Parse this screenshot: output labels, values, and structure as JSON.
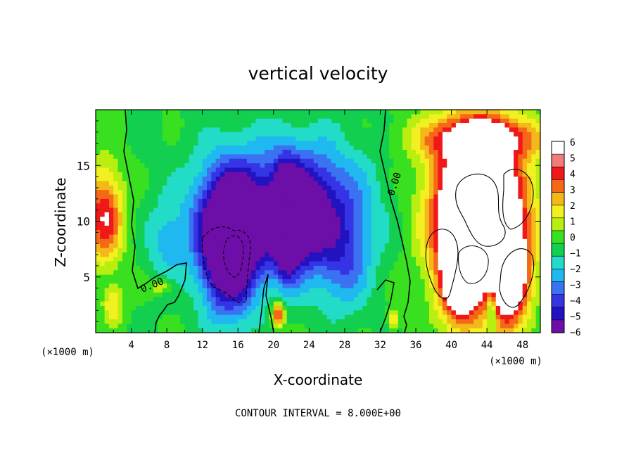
{
  "chart_data": {
    "type": "heatmap",
    "title": "vertical velocity",
    "xlabel": "X-coordinate",
    "ylabel": "Z-coordinate",
    "x_unit_label": "(×1000 m)",
    "x_unit_label_right": "(×1000 m)",
    "xlim": [
      0,
      50
    ],
    "ylim": [
      0,
      20
    ],
    "x_ticks": [
      4,
      8,
      12,
      16,
      20,
      24,
      28,
      32,
      36,
      40,
      44,
      48
    ],
    "y_ticks": [
      5,
      10,
      15
    ],
    "colorbar": {
      "min": -6,
      "max": 6,
      "tick_values": [
        6,
        5,
        4,
        3,
        2,
        1,
        0,
        -1,
        -2,
        -3,
        -4,
        -5,
        -6
      ],
      "tick_labels": [
        "6",
        "5",
        "4",
        "3",
        "2",
        "1",
        "0",
        "−1",
        "−2",
        "−3",
        "−4",
        "−5",
        "−6"
      ],
      "colors": [
        "#6e0ea8",
        "#2212bf",
        "#3535e6",
        "#3a72f2",
        "#20b8f0",
        "#22dcc8",
        "#12cf50",
        "#38e020",
        "#b8ee10",
        "#f2f020",
        "#f4b818",
        "#f46818",
        "#f01818",
        "#f07c7c",
        "#ffffff"
      ],
      "above_max_color": "#ffffff",
      "below_min_color": "#6e0ea8"
    },
    "contour_interval_text": "CONTOUR INTERVAL = 8.000E+00",
    "contour_labels": [
      "0.00",
      "0.00"
    ],
    "features": [
      {
        "kind": "updraft",
        "x": 1,
        "z": 10.5,
        "amp": 6,
        "sx": 1.5,
        "sz": 3
      },
      {
        "kind": "updraft",
        "x": 43,
        "z": 11,
        "amp": 13,
        "sx": 3.5,
        "sz": 5
      },
      {
        "kind": "updraft",
        "x": 41,
        "z": 5,
        "amp": 8,
        "sx": 1.5,
        "sz": 3
      },
      {
        "kind": "updraft",
        "x": 46.5,
        "z": 5,
        "amp": 8,
        "sx": 1.5,
        "sz": 3.5
      },
      {
        "kind": "updraft",
        "x": 43.5,
        "z": 17.5,
        "amp": 5,
        "sx": 5,
        "sz": 1.3
      },
      {
        "kind": "updraft",
        "x": 2,
        "z": 2.5,
        "amp": 3,
        "sx": 0.8,
        "sz": 1.2
      },
      {
        "kind": "updraft",
        "x": 7.5,
        "z": 4.2,
        "amp": 2.5,
        "sx": 1,
        "sz": 0.5
      },
      {
        "kind": "updraft",
        "x": 20.5,
        "z": 1.6,
        "amp": 6,
        "sx": 0.5,
        "sz": 0.8
      },
      {
        "kind": "updraft",
        "x": 33.5,
        "z": 1.2,
        "amp": 3,
        "sx": 0.4,
        "sz": 0.6
      },
      {
        "kind": "downdraft",
        "x": 20,
        "z": 11,
        "amp": -5,
        "sx": 6,
        "sz": 4
      },
      {
        "kind": "downdraft",
        "x": 25,
        "z": 11,
        "amp": -3,
        "sx": 4,
        "sz": 4
      },
      {
        "kind": "downdraft",
        "x": 15,
        "z": 8,
        "amp": -11,
        "sx": 2.2,
        "sz": 4
      },
      {
        "kind": "downdraft",
        "x": 21.5,
        "z": 10,
        "amp": -10,
        "sx": 1,
        "sz": 3
      },
      {
        "kind": "downdraft",
        "x": 23.5,
        "z": 10,
        "amp": -3,
        "sx": 1.5,
        "sz": 2.5
      },
      {
        "kind": "downdraft",
        "x": 8,
        "z": 8,
        "amp": -2,
        "sx": 1.5,
        "sz": 2.5
      },
      {
        "kind": "downdraft",
        "x": 28,
        "z": 6,
        "amp": -2.5,
        "sx": 2,
        "sz": 3
      },
      {
        "kind": "downdraft",
        "x": 44.5,
        "z": 2,
        "amp": -4,
        "sx": 0.4,
        "sz": 1.2
      }
    ]
  }
}
